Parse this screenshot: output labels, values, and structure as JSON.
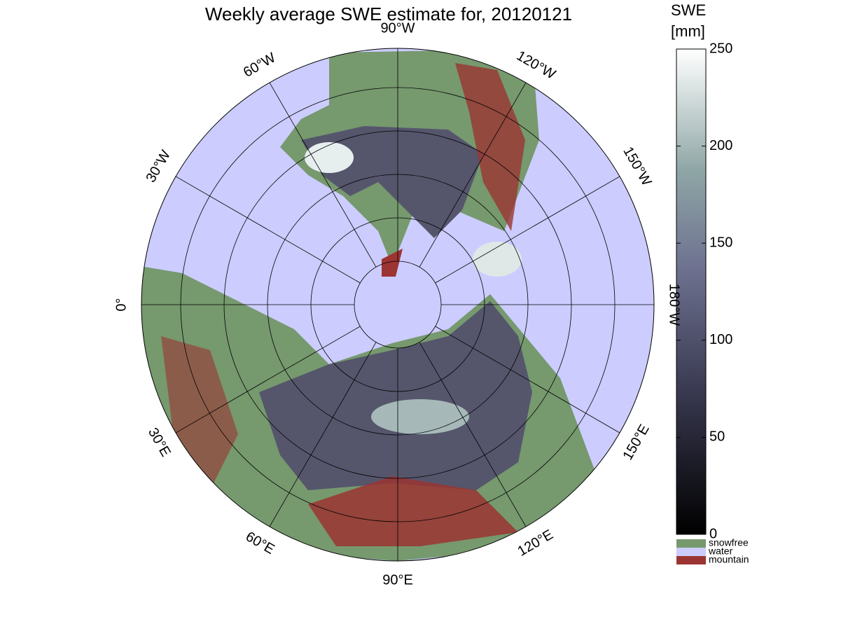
{
  "title": "Weekly average SWE estimate for, 20120121",
  "longitude_labels": [
    "0°",
    "30°E",
    "60°E",
    "90°E",
    "120°E",
    "150°E",
    "180°W",
    "150°W",
    "120°W",
    "90°W",
    "60°W",
    "30°W"
  ],
  "colorbar": {
    "title": "SWE",
    "unit": "[mm]",
    "lim": [
      0,
      250
    ],
    "ticks": [
      0,
      50,
      100,
      150,
      200,
      250
    ]
  },
  "legend": [
    {
      "label": "snowfree",
      "color": "#76996e"
    },
    {
      "label": "water",
      "color": "#ccccff"
    },
    {
      "label": "mountain",
      "color": "#9b3432"
    }
  ]
}
